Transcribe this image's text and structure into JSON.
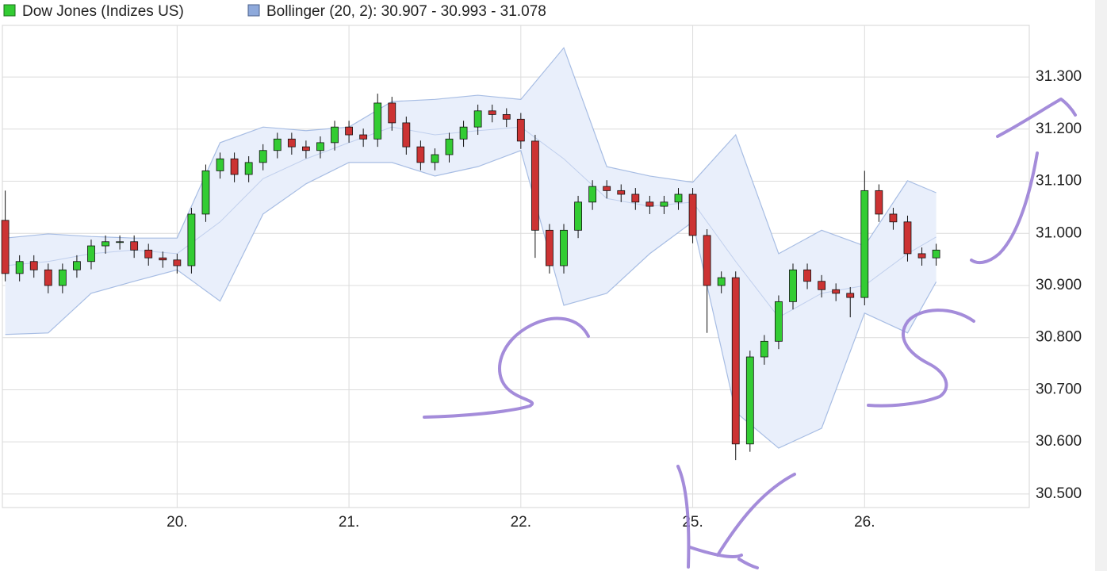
{
  "chart_data": {
    "type": "candlestick",
    "xlim": [
      -0.2,
      71.5
    ],
    "xticks": [
      {
        "value": 12,
        "label": "20."
      },
      {
        "value": 24,
        "label": "21."
      },
      {
        "value": 36,
        "label": "22."
      },
      {
        "value": 48,
        "label": "25."
      },
      {
        "value": 60,
        "label": "26."
      }
    ],
    "ylim": [
      30474,
      31399
    ],
    "yticks": [
      {
        "value": 30500,
        "label": "30.500"
      },
      {
        "value": 30600,
        "label": "30.600"
      },
      {
        "value": 30700,
        "label": "30.700"
      },
      {
        "value": 30800,
        "label": "30.800"
      },
      {
        "value": 30900,
        "label": "30.900"
      },
      {
        "value": 31000,
        "label": "31.000"
      },
      {
        "value": 31100,
        "label": "31.100"
      },
      {
        "value": 31200,
        "label": "31.200"
      },
      {
        "value": 31300,
        "label": "31.300"
      }
    ],
    "grid": true,
    "series": [
      {
        "name": "Dow Jones (Indizes US)",
        "type": "candlestick",
        "color": "#33cc33",
        "up_color": "#33cc33",
        "down_color": "#cc3333",
        "x": [
          0,
          1,
          2,
          3,
          4,
          5,
          6,
          7,
          8,
          9,
          10,
          11,
          12,
          13,
          14,
          15,
          16,
          17,
          18,
          19,
          20,
          21,
          22,
          23,
          24,
          25,
          26,
          27,
          28,
          29,
          30,
          31,
          32,
          33,
          34,
          35,
          36,
          37,
          38,
          39,
          40,
          41,
          42,
          43,
          44,
          45,
          46,
          47,
          48,
          49,
          50,
          51,
          52,
          53,
          54,
          55,
          56,
          57,
          58,
          59,
          60,
          61,
          62,
          63,
          64,
          65
        ],
        "open": [
          31025,
          30923,
          30946,
          30930,
          30900,
          30930,
          30946,
          30976,
          30984,
          30984,
          30968,
          30953,
          30949,
          30938,
          31037,
          31120,
          31143,
          31113,
          31136,
          31159,
          31181,
          31166,
          31159,
          31174,
          31204,
          31189,
          31181,
          31250,
          31212,
          31166,
          31136,
          31151,
          31181,
          31204,
          31235,
          31228,
          31219,
          31177,
          31006,
          30938,
          31006,
          31060,
          31090,
          31082,
          31075,
          31060,
          31052,
          31060,
          31075,
          30996,
          30900,
          30915,
          30596,
          30763,
          30793,
          30869,
          30930,
          30908,
          30892,
          30885,
          30877,
          31082,
          31037,
          31022,
          30961,
          30953
        ],
        "high": [
          31082,
          30958,
          30958,
          30942,
          30942,
          30958,
          30988,
          30996,
          30996,
          30996,
          30980,
          30965,
          30961,
          31049,
          31132,
          31155,
          31155,
          31148,
          31171,
          31193,
          31193,
          31178,
          31186,
          31216,
          31216,
          31201,
          31268,
          31262,
          31224,
          31178,
          31163,
          31193,
          31216,
          31247,
          31247,
          31240,
          31231,
          31189,
          31018,
          31018,
          31072,
          31102,
          31102,
          31094,
          31087,
          31072,
          31072,
          31087,
          31087,
          31008,
          30927,
          30927,
          30775,
          30805,
          30881,
          30942,
          30942,
          30920,
          30904,
          30897,
          31120,
          31094,
          31049,
          31034,
          30973,
          30980
        ],
        "low": [
          30908,
          30908,
          30915,
          30885,
          30885,
          30915,
          30931,
          30961,
          30969,
          30953,
          30938,
          30934,
          30923,
          30923,
          31022,
          31105,
          31098,
          31098,
          31121,
          31144,
          31151,
          31144,
          31144,
          31159,
          31174,
          31166,
          31166,
          31197,
          31151,
          31121,
          31121,
          31136,
          31166,
          31189,
          31213,
          31204,
          31162,
          30953,
          30923,
          30923,
          30991,
          31045,
          31067,
          31060,
          31045,
          31037,
          31037,
          31045,
          30981,
          30809,
          30885,
          30565,
          30581,
          30748,
          30778,
          30854,
          30893,
          30877,
          30870,
          30839,
          30862,
          31022,
          31007,
          30946,
          30938,
          30938
        ],
        "close": [
          30923,
          30946,
          30930,
          30900,
          30930,
          30946,
          30976,
          30984,
          30984,
          30968,
          30953,
          30949,
          30938,
          31037,
          31120,
          31143,
          31113,
          31136,
          31159,
          31181,
          31166,
          31159,
          31174,
          31204,
          31189,
          31181,
          31250,
          31212,
          31166,
          31136,
          31151,
          31181,
          31204,
          31235,
          31228,
          31219,
          31177,
          31006,
          30938,
          31006,
          31060,
          31090,
          31082,
          31075,
          31060,
          31052,
          31060,
          31075,
          30996,
          30900,
          30915,
          30596,
          30763,
          30793,
          30869,
          30930,
          30908,
          30892,
          30885,
          30877,
          31082,
          31037,
          31022,
          30961,
          30953,
          30968
        ]
      },
      {
        "name": "Bollinger (20, 2): 30.907 - 30.993 - 31.078",
        "type": "band",
        "color": "#8ea9db",
        "x": [
          0,
          3,
          6,
          9,
          12,
          15,
          18,
          21,
          24,
          27,
          30,
          33,
          36,
          39,
          42,
          45,
          48,
          51,
          54,
          57,
          60,
          63,
          65
        ],
        "upper": [
          30991,
          30999,
          30994,
          30991,
          30991,
          31174,
          31204,
          31197,
          31204,
          31253,
          31257,
          31265,
          31257,
          31356,
          31128,
          31110,
          31098,
          31189,
          30961,
          31006,
          30976,
          31101,
          31078
        ],
        "middle": [
          30938,
          30946,
          30961,
          30968,
          30961,
          31022,
          31105,
          31143,
          31174,
          31204,
          31189,
          31197,
          31204,
          31143,
          31067,
          31052,
          31060,
          30946,
          30839,
          30885,
          30900,
          30961,
          30993
        ],
        "lower": [
          30806,
          30809,
          30885,
          30908,
          30930,
          30870,
          31037,
          31095,
          31136,
          31136,
          31110,
          31128,
          31159,
          30862,
          30885,
          30961,
          31022,
          30657,
          30588,
          30626,
          30847,
          30809,
          30907
        ]
      }
    ]
  }
}
